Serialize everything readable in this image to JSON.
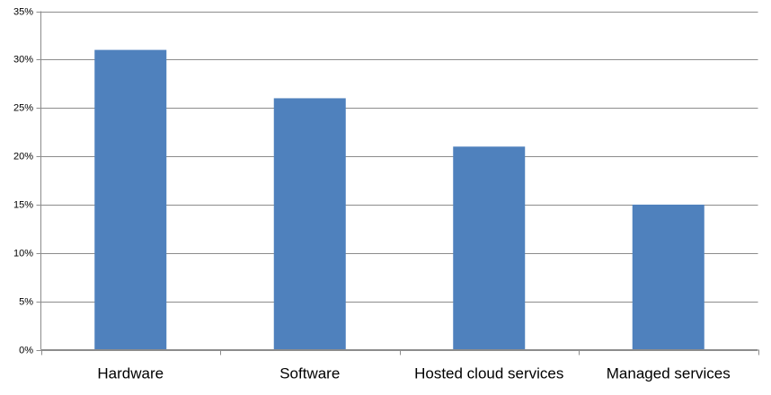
{
  "chart_data": {
    "type": "bar",
    "categories": [
      "Hardware",
      "Software",
      "Hosted cloud services",
      "Managed services"
    ],
    "values": [
      31,
      26,
      21,
      15
    ],
    "color": "#4f81bd",
    "ylim": [
      0,
      35
    ],
    "yticks": [
      {
        "value": 0,
        "label": "0%"
      },
      {
        "value": 5,
        "label": "5%"
      },
      {
        "value": 10,
        "label": "10%"
      },
      {
        "value": 15,
        "label": "15%"
      },
      {
        "value": 20,
        "label": "20%"
      },
      {
        "value": 25,
        "label": "25%"
      },
      {
        "value": 30,
        "label": "30%"
      },
      {
        "value": 35,
        "label": "35%"
      }
    ],
    "grid": true
  }
}
